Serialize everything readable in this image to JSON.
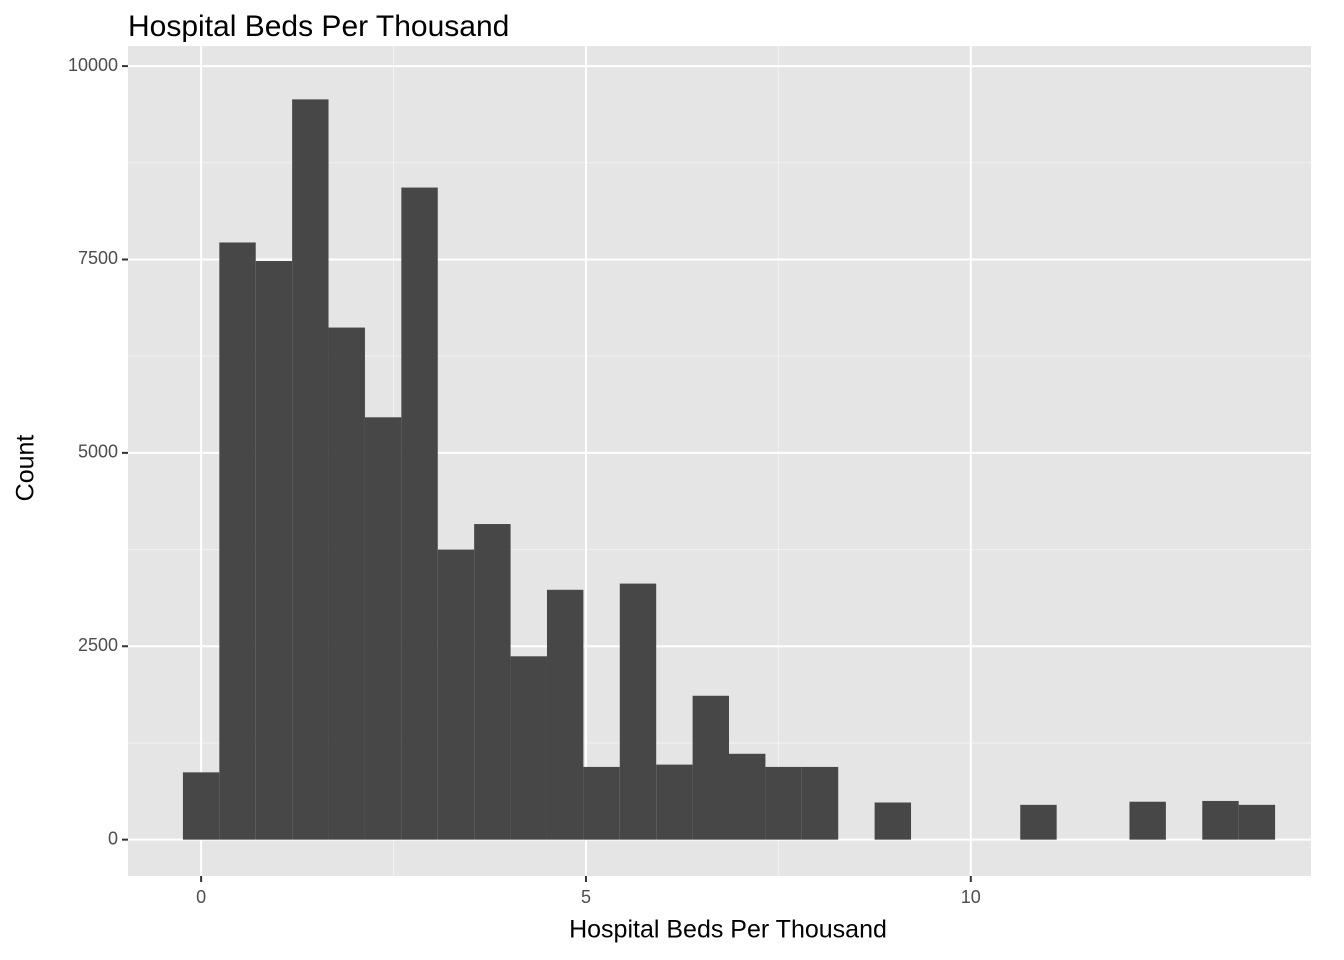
{
  "chart_data": {
    "type": "histogram",
    "title": "Hospital Beds Per Thousand",
    "x_label": "Hospital Beds Per Thousand",
    "y_label": "Count",
    "bins": [
      -0.2365,
      0.2365,
      0.7095,
      1.1825,
      1.6555,
      2.1285,
      2.6015,
      3.0745,
      3.5475,
      4.0205,
      4.4935,
      4.9665,
      5.4395,
      5.9125,
      6.3855,
      6.8585,
      7.3315,
      7.8045,
      8.2775,
      8.7505,
      9.2235,
      9.6965,
      10.1695,
      10.6425,
      11.1155,
      11.5885,
      12.0615,
      12.5345,
      13.0075,
      13.4805,
      13.9535
    ],
    "values": [
      870,
      7720,
      7480,
      9570,
      6620,
      5460,
      8430,
      3750,
      4080,
      2370,
      3230,
      940,
      3310,
      970,
      1860,
      1110,
      940,
      940,
      0,
      480,
      0,
      0,
      0,
      450,
      0,
      0,
      490,
      0,
      500,
      450
    ],
    "color": "#474747",
    "xlim": [
      -0.95,
      14.42
    ],
    "ylim": [
      -470,
      10260
    ],
    "xticks": [
      0,
      5,
      10
    ],
    "yticks": [
      0,
      2500,
      5000,
      7500,
      10000
    ],
    "grid": true
  }
}
